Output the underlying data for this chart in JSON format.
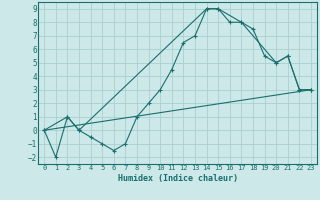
{
  "title": "",
  "xlabel": "Humidex (Indice chaleur)",
  "bg_color": "#cce8e8",
  "grid_color": "#aacfcf",
  "line_color": "#1a6e6e",
  "xlim": [
    -0.5,
    23.5
  ],
  "ylim": [
    -2.5,
    9.5
  ],
  "xticks": [
    0,
    1,
    2,
    3,
    4,
    5,
    6,
    7,
    8,
    9,
    10,
    11,
    12,
    13,
    14,
    15,
    16,
    17,
    18,
    19,
    20,
    21,
    22,
    23
  ],
  "yticks": [
    -2,
    -1,
    0,
    1,
    2,
    3,
    4,
    5,
    6,
    7,
    8,
    9
  ],
  "line1_x": [
    0,
    1,
    2,
    3,
    4,
    5,
    6,
    7,
    8,
    9,
    10,
    11,
    12,
    13,
    14,
    15,
    16,
    17,
    18,
    19,
    20,
    21,
    22,
    23
  ],
  "line1_y": [
    0,
    -2,
    1,
    0,
    -0.5,
    -1,
    -1.5,
    -1,
    1,
    2,
    3,
    4.5,
    6.5,
    7,
    9,
    9,
    8,
    8,
    7.5,
    5.5,
    5,
    5.5,
    3,
    3
  ],
  "line2_x": [
    0,
    2,
    3,
    14,
    15,
    17,
    20,
    21,
    22,
    23
  ],
  "line2_y": [
    0,
    1,
    0,
    9,
    9,
    8,
    5,
    5.5,
    3,
    3
  ],
  "line3_x": [
    0,
    23
  ],
  "line3_y": [
    0,
    3
  ],
  "figsize": [
    3.2,
    2.0
  ],
  "dpi": 100
}
